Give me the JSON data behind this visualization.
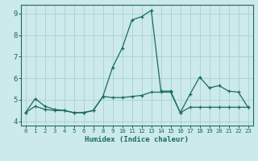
{
  "title": "",
  "xlabel": "Humidex (Indice chaleur)",
  "bg_color": "#cce9eb",
  "grid_color": "#aed4d6",
  "line_color": "#1a6b5e",
  "xlim": [
    -0.5,
    23.5
  ],
  "ylim": [
    3.8,
    9.4
  ],
  "xticks": [
    0,
    1,
    2,
    3,
    4,
    5,
    6,
    7,
    8,
    9,
    10,
    11,
    12,
    13,
    14,
    15,
    16,
    17,
    18,
    19,
    20,
    21,
    22,
    23
  ],
  "yticks": [
    4,
    5,
    6,
    7,
    8,
    9
  ],
  "line1_x": [
    0,
    1,
    2,
    3,
    4,
    5,
    6,
    7,
    8,
    9,
    10,
    11,
    12,
    13,
    14,
    15,
    16,
    17,
    18,
    19,
    20,
    21,
    22,
    23
  ],
  "line1_y": [
    4.4,
    5.05,
    4.7,
    4.55,
    4.5,
    4.4,
    4.4,
    4.5,
    5.15,
    6.5,
    7.4,
    8.7,
    8.85,
    9.15,
    5.4,
    5.4,
    4.4,
    5.25,
    6.05,
    5.55,
    5.65,
    5.4,
    5.35,
    4.65
  ],
  "line2_x": [
    0,
    1,
    2,
    3,
    4,
    5,
    6,
    7,
    8,
    9,
    10,
    11,
    12,
    13,
    14,
    15,
    16,
    17,
    18,
    19,
    20,
    21,
    22,
    23
  ],
  "line2_y": [
    4.4,
    4.7,
    4.55,
    4.5,
    4.5,
    4.4,
    4.4,
    4.5,
    5.15,
    5.1,
    5.1,
    5.15,
    5.2,
    5.35,
    5.35,
    5.35,
    4.4,
    4.65,
    4.65,
    4.65,
    4.65,
    4.65,
    4.65,
    4.65
  ]
}
